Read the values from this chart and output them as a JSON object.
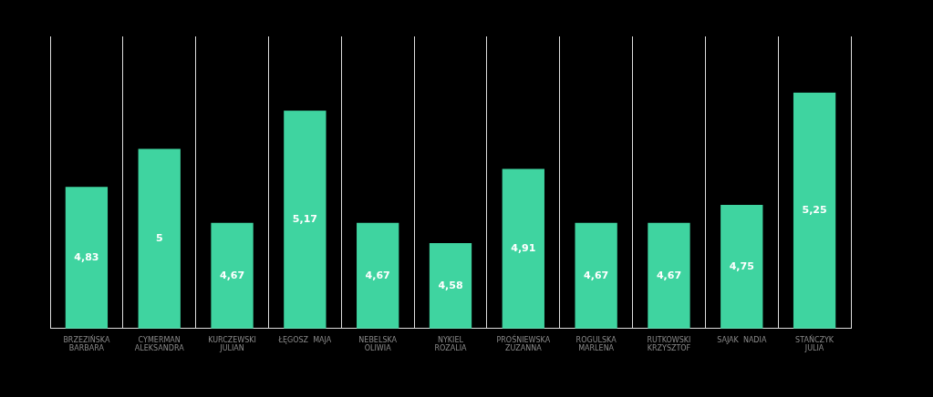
{
  "chart_data": {
    "type": "bar",
    "categories": [
      "BRZEZIŃSKA\nBARBARA",
      "CYMERMAN\nALEKSANDRA",
      "KURCZEWSKI\nJULIAN",
      "ŁĘGOSZ  MAJA",
      "NEBELSKA\nOLIWIA",
      "NYKIEL\nROZALIA",
      "PROŚNIEWSKA\nZUZANNA",
      "ROGULSKA\nMARLENA",
      "RUTKOWSKI\nKRZYSZTOF",
      "SAJAK  NADIA",
      "STAŃCZYK\nJULIA"
    ],
    "values": [
      4.83,
      5,
      4.67,
      5.17,
      4.67,
      4.58,
      4.91,
      4.67,
      4.67,
      4.75,
      5.25
    ],
    "value_labels": [
      "4,83",
      "5",
      "4,67",
      "5,17",
      "4,67",
      "4,58",
      "4,91",
      "4,67",
      "4,67",
      "4,75",
      "5,25"
    ],
    "color": "#3fd4a0",
    "ylim": [
      4.2,
      5.5
    ],
    "tick_labels": "x",
    "grid": "x",
    "legend": false
  }
}
